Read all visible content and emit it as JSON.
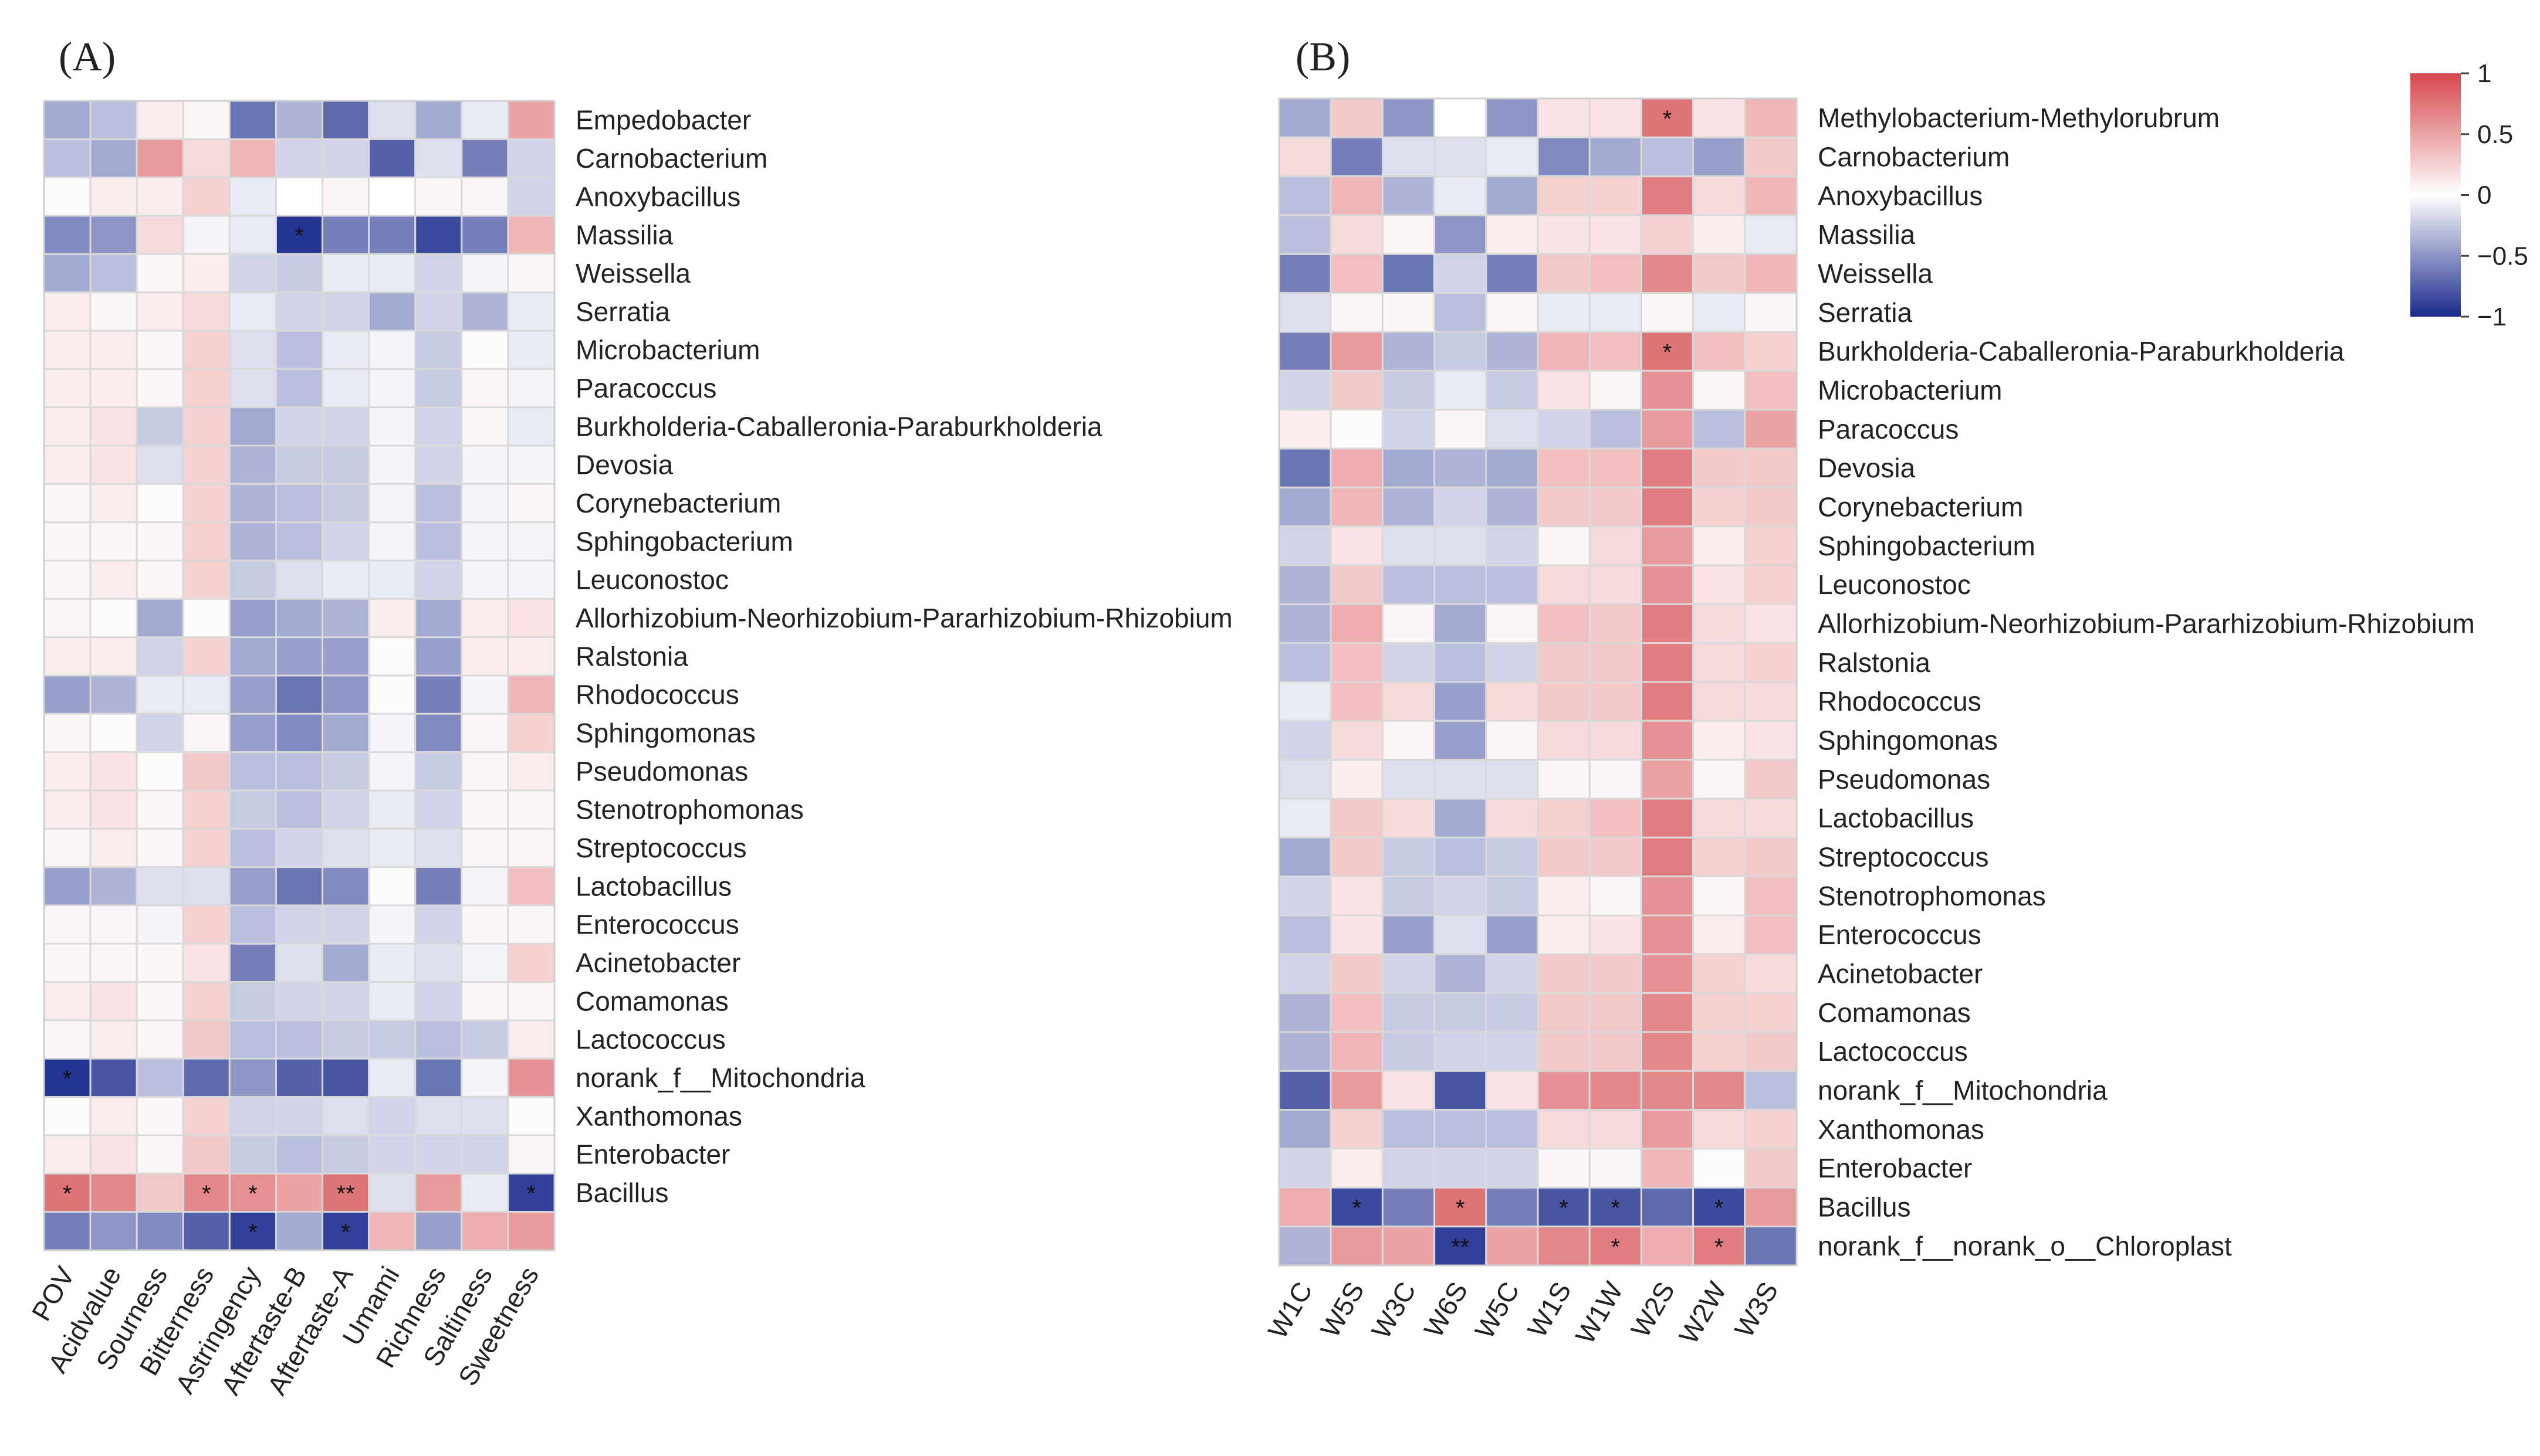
{
  "chart_data": [
    {
      "type": "heatmap",
      "panel": "(A)",
      "rows": [
        "Empedobacter",
        "Carnobacterium",
        "Anoxybacillus",
        "Massilia",
        "Weissella",
        "Serratia",
        "Microbacterium",
        "Paracoccus",
        "Burkholderia-Caballeronia-Paraburkholderia",
        "Devosia",
        "Corynebacterium",
        "Sphingobacterium",
        "Leuconostoc",
        "Allorhizobium-Neorhizobium-Pararhizobium-Rhizobium",
        "Ralstonia",
        "Rhodococcus",
        "Sphingomonas",
        "Pseudomonas",
        "Stenotrophomonas",
        "Streptococcus",
        "Lactobacillus",
        "Enterococcus",
        "Acinetobacter",
        "Comamonas",
        "Lactococcus",
        "norank_f__Mitochondria",
        "Xanthomonas",
        "Enterobacter",
        "Bacillus",
        ""
      ],
      "columns": [
        "POV",
        "Acidvalue",
        "Sourness",
        "Bitterness",
        "Astringency",
        "Aftertaste-B",
        "Aftertaste-A",
        "Umami",
        "Richness",
        "Saltiness",
        "Sweetness"
      ],
      "values": [
        [
          -0.4,
          -0.3,
          0.1,
          0.05,
          -0.65,
          -0.35,
          -0.7,
          -0.15,
          -0.4,
          -0.1,
          0.5
        ],
        [
          -0.3,
          -0.4,
          0.55,
          0.2,
          0.4,
          -0.2,
          -0.2,
          -0.75,
          -0.15,
          -0.6,
          -0.2
        ],
        [
          0.02,
          0.1,
          0.1,
          0.25,
          -0.1,
          0.0,
          0.05,
          0.0,
          0.05,
          0.05,
          -0.2
        ],
        [
          -0.55,
          -0.5,
          0.2,
          -0.05,
          -0.1,
          -0.95,
          -0.6,
          -0.6,
          -0.85,
          -0.6,
          0.4
        ],
        [
          -0.4,
          -0.3,
          0.05,
          0.1,
          -0.2,
          -0.25,
          -0.1,
          -0.1,
          -0.2,
          -0.05,
          0.05
        ],
        [
          0.1,
          0.05,
          0.1,
          0.2,
          -0.1,
          -0.2,
          -0.2,
          -0.4,
          -0.2,
          -0.35,
          -0.1
        ],
        [
          0.1,
          0.1,
          0.05,
          0.25,
          -0.15,
          -0.3,
          -0.1,
          -0.05,
          -0.25,
          0.02,
          -0.1
        ],
        [
          0.1,
          0.1,
          0.05,
          0.25,
          -0.15,
          -0.3,
          -0.1,
          -0.05,
          -0.25,
          0.05,
          -0.05
        ],
        [
          0.1,
          0.15,
          -0.25,
          0.25,
          -0.4,
          -0.2,
          -0.2,
          -0.05,
          -0.2,
          0.05,
          -0.1
        ],
        [
          0.1,
          0.15,
          -0.15,
          0.25,
          -0.35,
          -0.25,
          -0.25,
          -0.05,
          -0.2,
          -0.05,
          -0.05
        ],
        [
          0.05,
          0.1,
          0.02,
          0.25,
          -0.35,
          -0.3,
          -0.25,
          -0.05,
          -0.3,
          -0.05,
          0.05
        ],
        [
          0.05,
          0.05,
          0.05,
          0.25,
          -0.35,
          -0.3,
          -0.2,
          -0.05,
          -0.3,
          -0.05,
          -0.05
        ],
        [
          0.05,
          0.1,
          0.05,
          0.25,
          -0.25,
          -0.15,
          -0.1,
          -0.1,
          -0.2,
          -0.05,
          -0.05
        ],
        [
          0.05,
          0.02,
          -0.4,
          0.02,
          -0.45,
          -0.4,
          -0.35,
          0.1,
          -0.4,
          0.1,
          0.15
        ],
        [
          0.1,
          0.1,
          -0.2,
          0.25,
          -0.4,
          -0.45,
          -0.45,
          0.02,
          -0.45,
          0.1,
          0.1
        ],
        [
          -0.45,
          -0.35,
          -0.1,
          -0.1,
          -0.45,
          -0.65,
          -0.5,
          0.02,
          -0.6,
          -0.05,
          0.4
        ],
        [
          0.05,
          0.02,
          -0.2,
          0.05,
          -0.45,
          -0.55,
          -0.4,
          -0.05,
          -0.55,
          0.05,
          0.25
        ],
        [
          0.1,
          0.15,
          0.02,
          0.3,
          -0.3,
          -0.3,
          -0.25,
          -0.05,
          -0.25,
          0.05,
          0.1
        ],
        [
          0.1,
          0.15,
          0.05,
          0.25,
          -0.25,
          -0.3,
          -0.2,
          -0.1,
          -0.2,
          0.05,
          0.05
        ],
        [
          0.05,
          0.1,
          0.05,
          0.25,
          -0.3,
          -0.2,
          -0.15,
          -0.1,
          -0.15,
          0.05,
          0.05
        ],
        [
          -0.45,
          -0.35,
          -0.15,
          -0.15,
          -0.45,
          -0.65,
          -0.55,
          0.02,
          -0.6,
          -0.05,
          0.35
        ],
        [
          0.05,
          0.05,
          -0.05,
          0.25,
          -0.3,
          -0.2,
          -0.2,
          -0.05,
          -0.2,
          0.05,
          0.05
        ],
        [
          0.05,
          0.05,
          0.05,
          0.15,
          -0.6,
          -0.15,
          -0.4,
          -0.1,
          -0.15,
          -0.05,
          0.25
        ],
        [
          0.1,
          0.15,
          0.05,
          0.25,
          -0.25,
          -0.2,
          -0.2,
          -0.1,
          -0.2,
          0.05,
          0.05
        ],
        [
          0.05,
          0.1,
          0.05,
          0.3,
          -0.3,
          -0.3,
          -0.25,
          -0.25,
          -0.3,
          -0.25,
          0.1
        ],
        [
          -0.95,
          -0.8,
          -0.3,
          -0.7,
          -0.5,
          -0.75,
          -0.8,
          -0.1,
          -0.65,
          -0.05,
          0.6
        ],
        [
          0.02,
          0.1,
          0.05,
          0.25,
          -0.2,
          -0.2,
          -0.15,
          -0.2,
          -0.15,
          -0.15,
          0.02
        ],
        [
          0.1,
          0.15,
          0.05,
          0.3,
          -0.25,
          -0.3,
          -0.25,
          -0.2,
          -0.2,
          -0.2,
          0.05
        ],
        [
          0.75,
          0.65,
          0.3,
          0.65,
          0.6,
          0.5,
          0.75,
          -0.15,
          0.55,
          -0.1,
          -0.9
        ],
        [
          -0.6,
          -0.5,
          -0.55,
          -0.75,
          -0.9,
          -0.4,
          -0.9,
          0.4,
          -0.45,
          0.45,
          0.55
        ]
      ],
      "stars": [
        {
          "row": 3,
          "col": 5,
          "label": "*"
        },
        {
          "row": 25,
          "col": 0,
          "label": "*"
        },
        {
          "row": 28,
          "col": 0,
          "label": "*"
        },
        {
          "row": 28,
          "col": 3,
          "label": "*"
        },
        {
          "row": 28,
          "col": 4,
          "label": "*"
        },
        {
          "row": 28,
          "col": 6,
          "label": "**"
        },
        {
          "row": 28,
          "col": 10,
          "label": "*"
        },
        {
          "row": 29,
          "col": 4,
          "label": "*"
        },
        {
          "row": 29,
          "col": 6,
          "label": "*"
        }
      ]
    },
    {
      "type": "heatmap",
      "panel": "(B)",
      "rows": [
        "Methylobacterium-Methylorubrum",
        "Carnobacterium",
        "Anoxybacillus",
        "Massilia",
        "Weissella",
        "Serratia",
        "Burkholderia-Caballeronia-Paraburkholderia",
        "Microbacterium",
        "Paracoccus",
        "Devosia",
        "Corynebacterium",
        "Sphingobacterium",
        "Leuconostoc",
        "Allorhizobium-Neorhizobium-Pararhizobium-Rhizobium",
        "Ralstonia",
        "Rhodococcus",
        "Sphingomonas",
        "Pseudomonas",
        "Lactobacillus",
        "Streptococcus",
        "Stenotrophomonas",
        "Enterococcus",
        "Acinetobacter",
        "Comamonas",
        "Lactococcus",
        "norank_f__Mitochondria",
        "Xanthomonas",
        "Enterobacter",
        "Bacillus",
        "norank_f__norank_o__Chloroplast"
      ],
      "columns": [
        "W1C",
        "W5S",
        "W3C",
        "W6S",
        "W5C",
        "W1S",
        "W1W",
        "W2S",
        "W2W",
        "W3S"
      ],
      "values": [
        [
          -0.4,
          0.3,
          -0.5,
          0.0,
          -0.5,
          0.15,
          0.15,
          0.75,
          0.15,
          0.4
        ],
        [
          0.2,
          -0.6,
          -0.15,
          -0.15,
          -0.1,
          -0.55,
          -0.4,
          -0.3,
          -0.45,
          0.3
        ],
        [
          -0.3,
          0.4,
          -0.35,
          -0.1,
          -0.4,
          0.25,
          0.25,
          0.7,
          0.2,
          0.4
        ],
        [
          -0.3,
          0.2,
          0.05,
          -0.5,
          0.1,
          0.15,
          0.15,
          0.25,
          0.1,
          -0.1
        ],
        [
          -0.6,
          0.35,
          -0.65,
          -0.2,
          -0.6,
          0.3,
          0.35,
          0.65,
          0.3,
          0.4
        ],
        [
          -0.15,
          0.05,
          0.05,
          -0.3,
          0.05,
          -0.1,
          -0.1,
          0.05,
          -0.1,
          0.05
        ],
        [
          -0.6,
          0.55,
          -0.35,
          -0.25,
          -0.35,
          0.4,
          0.35,
          0.75,
          0.35,
          0.25
        ],
        [
          -0.2,
          0.3,
          -0.25,
          -0.1,
          -0.25,
          0.15,
          0.05,
          0.6,
          0.05,
          0.35
        ],
        [
          0.1,
          0.02,
          -0.2,
          0.05,
          -0.15,
          -0.2,
          -0.3,
          0.55,
          -0.3,
          0.5
        ],
        [
          -0.65,
          0.45,
          -0.4,
          -0.35,
          -0.4,
          0.35,
          0.35,
          0.7,
          0.3,
          0.3
        ],
        [
          -0.4,
          0.4,
          -0.35,
          -0.2,
          -0.35,
          0.3,
          0.3,
          0.7,
          0.25,
          0.3
        ],
        [
          -0.2,
          0.15,
          -0.15,
          -0.15,
          -0.2,
          0.05,
          0.2,
          0.55,
          0.1,
          0.25
        ],
        [
          -0.35,
          0.3,
          -0.3,
          -0.3,
          -0.3,
          0.2,
          0.2,
          0.6,
          0.15,
          0.25
        ],
        [
          -0.35,
          0.45,
          0.05,
          -0.4,
          0.05,
          0.35,
          0.3,
          0.7,
          0.2,
          0.15
        ],
        [
          -0.3,
          0.35,
          -0.2,
          -0.3,
          -0.2,
          0.3,
          0.3,
          0.7,
          0.2,
          0.25
        ],
        [
          -0.1,
          0.35,
          0.2,
          -0.45,
          0.2,
          0.3,
          0.3,
          0.7,
          0.2,
          0.2
        ],
        [
          -0.2,
          0.2,
          0.05,
          -0.45,
          0.05,
          0.2,
          0.2,
          0.6,
          0.1,
          0.15
        ],
        [
          -0.15,
          0.1,
          -0.15,
          -0.15,
          -0.15,
          0.05,
          0.05,
          0.5,
          0.05,
          0.3
        ],
        [
          -0.1,
          0.3,
          0.2,
          -0.4,
          0.2,
          0.25,
          0.35,
          0.7,
          0.2,
          0.2
        ],
        [
          -0.4,
          0.3,
          -0.25,
          -0.3,
          -0.25,
          0.3,
          0.3,
          0.7,
          0.25,
          0.3
        ],
        [
          -0.2,
          0.15,
          -0.25,
          -0.2,
          -0.25,
          0.1,
          0.05,
          0.6,
          0.05,
          0.35
        ],
        [
          -0.3,
          0.15,
          -0.45,
          -0.15,
          -0.45,
          0.1,
          0.15,
          0.6,
          0.1,
          0.35
        ],
        [
          -0.2,
          0.3,
          -0.2,
          -0.35,
          -0.2,
          0.3,
          0.3,
          0.6,
          0.25,
          0.2
        ],
        [
          -0.35,
          0.35,
          -0.25,
          -0.25,
          -0.25,
          0.3,
          0.3,
          0.65,
          0.25,
          0.25
        ],
        [
          -0.35,
          0.4,
          -0.25,
          -0.2,
          -0.2,
          0.3,
          0.3,
          0.65,
          0.25,
          0.3
        ],
        [
          -0.75,
          0.55,
          0.15,
          -0.8,
          0.15,
          0.6,
          0.65,
          0.65,
          0.65,
          -0.3
        ],
        [
          -0.4,
          0.25,
          -0.3,
          -0.3,
          -0.3,
          0.2,
          0.2,
          0.55,
          0.2,
          0.25
        ],
        [
          -0.2,
          0.1,
          -0.2,
          -0.2,
          -0.2,
          0.05,
          0.05,
          0.4,
          0.02,
          0.3
        ],
        [
          0.45,
          -0.85,
          -0.6,
          0.75,
          -0.6,
          -0.8,
          -0.8,
          -0.7,
          -0.85,
          0.55
        ],
        [
          -0.35,
          0.55,
          0.5,
          -0.9,
          0.5,
          0.65,
          0.7,
          0.45,
          0.7,
          -0.65
        ]
      ],
      "stars": [
        {
          "row": 0,
          "col": 7,
          "label": "*"
        },
        {
          "row": 6,
          "col": 7,
          "label": "*"
        },
        {
          "row": 28,
          "col": 1,
          "label": "*"
        },
        {
          "row": 28,
          "col": 3,
          "label": "*"
        },
        {
          "row": 28,
          "col": 5,
          "label": "*"
        },
        {
          "row": 28,
          "col": 6,
          "label": "*"
        },
        {
          "row": 28,
          "col": 8,
          "label": "*"
        },
        {
          "row": 29,
          "col": 3,
          "label": "**"
        },
        {
          "row": 29,
          "col": 6,
          "label": "*"
        },
        {
          "row": 29,
          "col": 8,
          "label": "*"
        }
      ]
    }
  ],
  "colorbar": {
    "ticks": [
      "1",
      "0.5",
      "0",
      "−0.5",
      "−1"
    ],
    "high_color": "#d6474c",
    "mid_color": "#ffffff",
    "low_color": "#1a2a8c"
  }
}
